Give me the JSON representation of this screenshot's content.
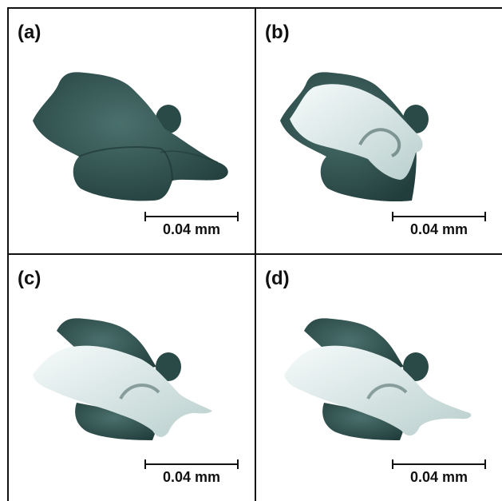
{
  "panels": [
    {
      "label": "(a)",
      "scale_text": "0.04 mm",
      "cut": "none"
    },
    {
      "label": "(b)",
      "scale_text": "0.04 mm",
      "cut": "section"
    },
    {
      "label": "(c)",
      "scale_text": "0.04 mm",
      "cut": "section-extended"
    },
    {
      "label": "(d)",
      "scale_text": "0.04 mm",
      "cut": "section-extended"
    }
  ],
  "colors": {
    "shape_dark": "#2d4f4c",
    "shape_mid": "#3e6461",
    "cut_face": "#dcebea",
    "cut_highlight": "#f6fbfb",
    "frame": "#111111"
  }
}
